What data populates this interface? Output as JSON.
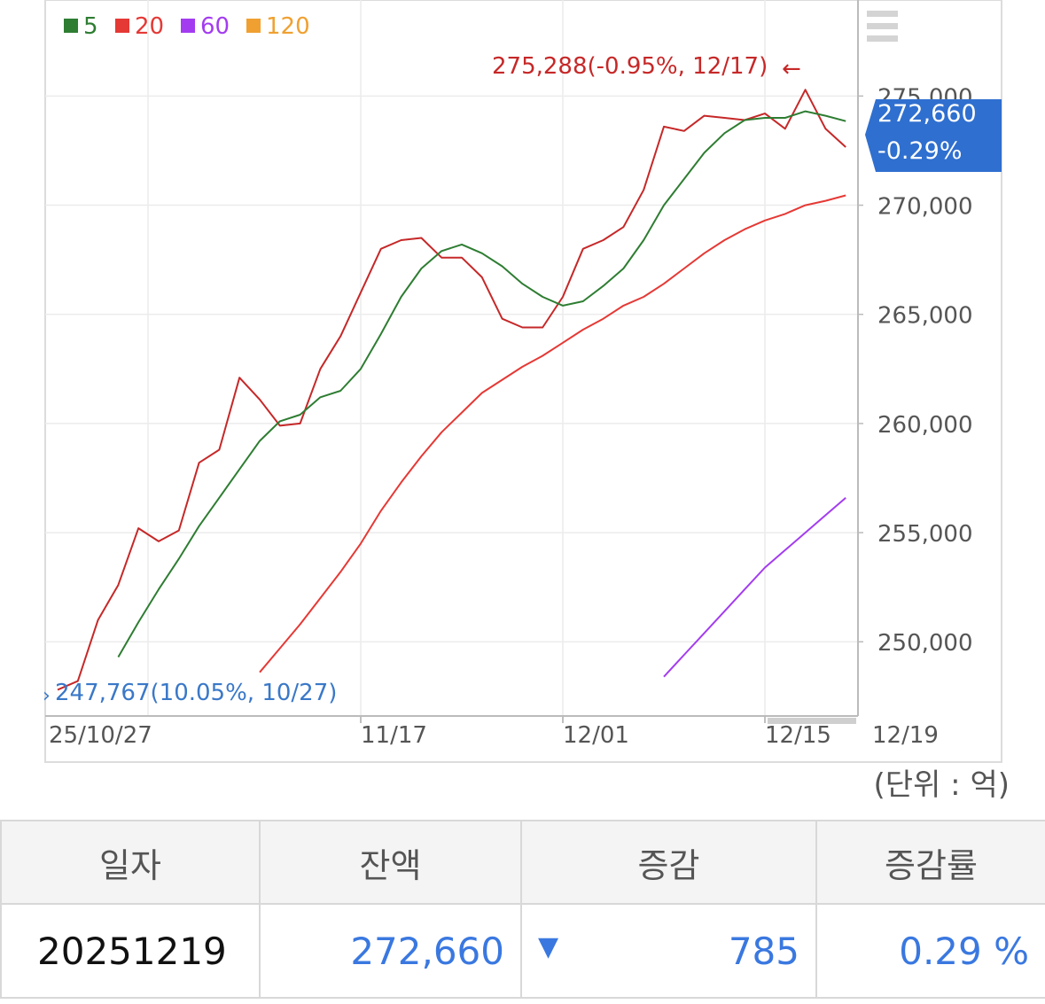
{
  "legend": [
    {
      "label": "5",
      "color": "#2e7d32"
    },
    {
      "label": "20",
      "color": "#e53935"
    },
    {
      "label": "60",
      "color": "#a33cf0"
    },
    {
      "label": "120",
      "color": "#f0a030"
    }
  ],
  "chart_data": {
    "type": "line",
    "x_ticks": [
      "25/10/27",
      "11/17",
      "12/01",
      "12/15",
      "12/19"
    ],
    "y_ticks": [
      "250,000",
      "255,000",
      "260,000",
      "265,000",
      "270,000",
      "275,000"
    ],
    "ylim": [
      246600,
      279400
    ],
    "grid": true,
    "legend_position": "top-left",
    "series": [
      {
        "name": "balance",
        "color": "#c62828",
        "values": [
          247800,
          248200,
          251000,
          252600,
          255200,
          254600,
          255100,
          258200,
          258800,
          262100,
          261100,
          259900,
          260000,
          262500,
          264000,
          266000,
          268000,
          268400,
          268500,
          267600,
          267600,
          266700,
          264800,
          264400,
          264400,
          265800,
          268000,
          268400,
          269000,
          270700,
          273600,
          273400,
          274100,
          274000,
          273900,
          274200,
          273500,
          275288,
          273500,
          272660
        ]
      },
      {
        "name": "5",
        "color": "#2e7d32",
        "values": [
          null,
          null,
          null,
          249300,
          250900,
          252400,
          253800,
          255300,
          256600,
          257900,
          259200,
          260100,
          260400,
          261200,
          261500,
          262500,
          264100,
          265800,
          267100,
          267900,
          268200,
          267800,
          267200,
          266400,
          265800,
          265400,
          265600,
          266300,
          267100,
          268400,
          270000,
          271200,
          272400,
          273300,
          273900,
          274000,
          274000,
          274300,
          274100,
          273850
        ]
      },
      {
        "name": "20",
        "color": "#e53935",
        "values": [
          null,
          null,
          null,
          null,
          null,
          null,
          null,
          null,
          null,
          null,
          248600,
          249700,
          250800,
          252000,
          253200,
          254500,
          256000,
          257300,
          258500,
          259600,
          260500,
          261400,
          262000,
          262600,
          263100,
          263700,
          264300,
          264800,
          265400,
          265800,
          266400,
          267100,
          267800,
          268400,
          268900,
          269300,
          269600,
          270000,
          270200,
          270450
        ]
      },
      {
        "name": "60",
        "color": "#a33cf0",
        "values": [
          null,
          null,
          null,
          null,
          null,
          null,
          null,
          null,
          null,
          null,
          null,
          null,
          null,
          null,
          null,
          null,
          null,
          null,
          null,
          null,
          null,
          null,
          null,
          null,
          null,
          null,
          null,
          null,
          null,
          null,
          248400,
          249400,
          250400,
          251400,
          252400,
          253400,
          254200,
          255000,
          255800,
          256600
        ]
      }
    ],
    "max_annotation": "275,288(-0.95%, 12/17)",
    "min_annotation": "247,767(10.05%, 10/27)",
    "current_value": "272,660",
    "current_change": "-0.29%"
  },
  "unit_label": "(단위 : 억)",
  "table": {
    "headers": [
      "일자",
      "잔액",
      "증감",
      "증감률"
    ],
    "row": {
      "date": "20251219",
      "balance": "272,660",
      "change": "785",
      "rate": "0.29 %"
    }
  }
}
